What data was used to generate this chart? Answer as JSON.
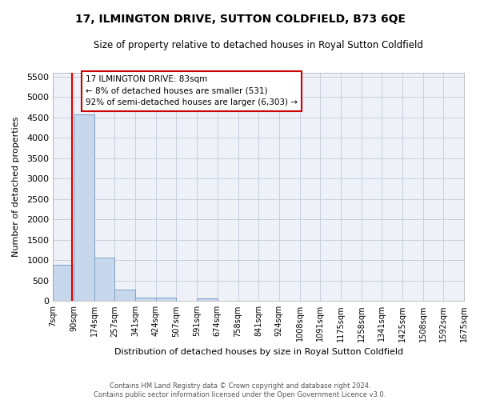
{
  "title": "17, ILMINGTON DRIVE, SUTTON COLDFIELD, B73 6QE",
  "subtitle": "Size of property relative to detached houses in Royal Sutton Coldfield",
  "xlabel": "Distribution of detached houses by size in Royal Sutton Coldfield",
  "ylabel": "Number of detached properties",
  "footnote": "Contains HM Land Registry data © Crown copyright and database right 2024.\nContains public sector information licensed under the Open Government Licence v3.0.",
  "bar_color": "#c8d8ec",
  "bar_edge_color": "#7aA0c4",
  "grid_color": "#c8d0dc",
  "annotation_box_color": "#cc0000",
  "annotation_text": "17 ILMINGTON DRIVE: 83sqm\n← 8% of detached houses are smaller (531)\n92% of semi-detached houses are larger (6,303) →",
  "subject_line_color": "#dd0000",
  "subject_size": 83,
  "bins": [
    7,
    90,
    174,
    257,
    341,
    424,
    507,
    591,
    674,
    758,
    841,
    924,
    1008,
    1091,
    1175,
    1258,
    1341,
    1425,
    1508,
    1592,
    1675
  ],
  "counts": [
    880,
    4570,
    1060,
    280,
    90,
    75,
    0,
    60,
    0,
    0,
    0,
    0,
    0,
    0,
    0,
    0,
    0,
    0,
    0,
    0
  ],
  "ylim": [
    0,
    5600
  ],
  "yticks": [
    0,
    500,
    1000,
    1500,
    2000,
    2500,
    3000,
    3500,
    4000,
    4500,
    5000,
    5500
  ],
  "bin_labels": [
    "7sqm",
    "90sqm",
    "174sqm",
    "257sqm",
    "341sqm",
    "424sqm",
    "507sqm",
    "591sqm",
    "674sqm",
    "758sqm",
    "841sqm",
    "924sqm",
    "1008sqm",
    "1091sqm",
    "1175sqm",
    "1258sqm",
    "1341sqm",
    "1425sqm",
    "1508sqm",
    "1592sqm",
    "1675sqm"
  ],
  "background_color": "#ffffff",
  "plot_bg_color": "#eef2f8"
}
